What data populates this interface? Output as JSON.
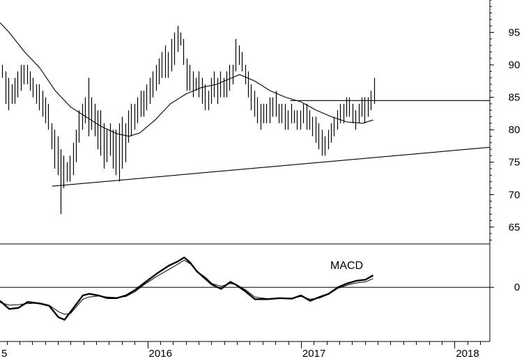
{
  "chart_data": {
    "type": "bar",
    "title": "",
    "price_axis": {
      "ticks": [
        65,
        70,
        75,
        80,
        85,
        90,
        95
      ],
      "range": [
        62.4,
        100
      ]
    },
    "macd_axis": {
      "ticks": [
        0
      ],
      "label": "MACD",
      "range": [
        -1.0,
        0.8
      ]
    },
    "time_axis": {
      "range": [
        2015.04,
        2018.23
      ],
      "year_labels": [
        {
          "value": 2015.0,
          "label": "5"
        },
        {
          "value": 2016.0,
          "label": "2016"
        },
        {
          "value": 2017.0,
          "label": "2017"
        },
        {
          "value": 2018.0,
          "label": "2018"
        }
      ]
    },
    "series": [
      {
        "kind": "weekly-ohlc-bars",
        "bars": [
          [
            2015.055,
            88,
            90
          ],
          [
            2015.075,
            84,
            89
          ],
          [
            2015.095,
            83,
            88
          ],
          [
            2015.115,
            84,
            87
          ],
          [
            2015.135,
            84,
            88
          ],
          [
            2015.155,
            85,
            89
          ],
          [
            2015.175,
            86,
            90
          ],
          [
            2015.195,
            87,
            90
          ],
          [
            2015.215,
            87,
            90
          ],
          [
            2015.235,
            86,
            89
          ],
          [
            2015.255,
            85,
            88
          ],
          [
            2015.275,
            84,
            87
          ],
          [
            2015.295,
            83,
            87
          ],
          [
            2015.315,
            82,
            86
          ],
          [
            2015.335,
            81,
            85
          ],
          [
            2015.355,
            80,
            84
          ],
          [
            2015.375,
            77,
            81
          ],
          [
            2015.395,
            74,
            80
          ],
          [
            2015.415,
            73,
            79
          ],
          [
            2015.435,
            67,
            77
          ],
          [
            2015.455,
            71,
            76
          ],
          [
            2015.475,
            72,
            75
          ],
          [
            2015.495,
            72,
            76
          ],
          [
            2015.515,
            73,
            78
          ],
          [
            2015.535,
            75,
            80
          ],
          [
            2015.555,
            78,
            83
          ],
          [
            2015.575,
            80,
            84
          ],
          [
            2015.595,
            81,
            85
          ],
          [
            2015.615,
            79,
            88
          ],
          [
            2015.635,
            80,
            85
          ],
          [
            2015.655,
            79,
            84
          ],
          [
            2015.675,
            77,
            83
          ],
          [
            2015.695,
            76,
            83
          ],
          [
            2015.715,
            74,
            81
          ],
          [
            2015.735,
            75,
            80
          ],
          [
            2015.755,
            76,
            81
          ],
          [
            2015.775,
            74,
            80
          ],
          [
            2015.795,
            73,
            80
          ],
          [
            2015.815,
            72,
            81
          ],
          [
            2015.835,
            74,
            82
          ],
          [
            2015.855,
            75,
            81
          ],
          [
            2015.875,
            78,
            83
          ],
          [
            2015.895,
            79,
            84
          ],
          [
            2015.915,
            80,
            84
          ],
          [
            2015.935,
            81,
            85
          ],
          [
            2015.955,
            82,
            86
          ],
          [
            2015.975,
            82,
            86
          ],
          [
            2015.995,
            83,
            87
          ],
          [
            2016.015,
            84,
            88
          ],
          [
            2016.035,
            85,
            89
          ],
          [
            2016.055,
            86,
            90
          ],
          [
            2016.075,
            87,
            91
          ],
          [
            2016.095,
            88,
            92
          ],
          [
            2016.115,
            88,
            93
          ],
          [
            2016.135,
            88,
            92
          ],
          [
            2016.155,
            89,
            94
          ],
          [
            2016.175,
            90,
            95
          ],
          [
            2016.195,
            92,
            96
          ],
          [
            2016.215,
            93,
            95
          ],
          [
            2016.235,
            90,
            94
          ],
          [
            2016.255,
            86,
            91
          ],
          [
            2016.275,
            86,
            90
          ],
          [
            2016.295,
            85,
            89
          ],
          [
            2016.315,
            86,
            88
          ],
          [
            2016.335,
            85,
            89
          ],
          [
            2016.355,
            84,
            88
          ],
          [
            2016.375,
            83,
            87
          ],
          [
            2016.395,
            83,
            86
          ],
          [
            2016.415,
            84,
            88
          ],
          [
            2016.435,
            85,
            89
          ],
          [
            2016.455,
            84,
            88
          ],
          [
            2016.475,
            85,
            89
          ],
          [
            2016.495,
            85,
            88
          ],
          [
            2016.515,
            85,
            89
          ],
          [
            2016.535,
            86,
            90
          ],
          [
            2016.555,
            87,
            90
          ],
          [
            2016.575,
            89,
            94
          ],
          [
            2016.595,
            90,
            93
          ],
          [
            2016.615,
            89,
            92
          ],
          [
            2016.635,
            87,
            90
          ],
          [
            2016.655,
            85,
            89
          ],
          [
            2016.675,
            83,
            87
          ],
          [
            2016.695,
            82,
            86
          ],
          [
            2016.715,
            81,
            85
          ],
          [
            2016.735,
            80,
            84
          ],
          [
            2016.755,
            81,
            84
          ],
          [
            2016.775,
            81,
            84
          ],
          [
            2016.795,
            81,
            85
          ],
          [
            2016.815,
            82,
            85
          ],
          [
            2016.835,
            82,
            86
          ],
          [
            2016.855,
            81,
            84
          ],
          [
            2016.875,
            81,
            84
          ],
          [
            2016.895,
            80,
            84
          ],
          [
            2016.915,
            80,
            83
          ],
          [
            2016.935,
            81,
            84
          ],
          [
            2016.955,
            81,
            83
          ],
          [
            2016.975,
            80,
            83
          ],
          [
            2016.995,
            80,
            83
          ],
          [
            2017.015,
            81,
            84
          ],
          [
            2017.035,
            80,
            84
          ],
          [
            2017.055,
            80,
            83
          ],
          [
            2017.075,
            79,
            82
          ],
          [
            2017.095,
            78,
            82
          ],
          [
            2017.115,
            77,
            81
          ],
          [
            2017.135,
            76,
            80
          ],
          [
            2017.155,
            76,
            79
          ],
          [
            2017.175,
            77,
            80
          ],
          [
            2017.195,
            78,
            81
          ],
          [
            2017.215,
            79,
            82
          ],
          [
            2017.235,
            80,
            83
          ],
          [
            2017.255,
            81,
            84
          ],
          [
            2017.275,
            81,
            84
          ],
          [
            2017.295,
            82,
            85
          ],
          [
            2017.315,
            82,
            85
          ],
          [
            2017.335,
            81,
            84
          ],
          [
            2017.355,
            80,
            83
          ],
          [
            2017.375,
            81,
            84
          ],
          [
            2017.395,
            82,
            85
          ],
          [
            2017.415,
            81,
            85
          ],
          [
            2017.435,
            82,
            85
          ],
          [
            2017.455,
            83,
            86
          ],
          [
            2017.475,
            84,
            88
          ]
        ]
      },
      {
        "kind": "moving-average",
        "points": [
          [
            2015.04,
            96.5
          ],
          [
            2015.1,
            95.0
          ],
          [
            2015.2,
            92.0
          ],
          [
            2015.3,
            89.5
          ],
          [
            2015.4,
            86.0
          ],
          [
            2015.5,
            83.5
          ],
          [
            2015.6,
            82.0
          ],
          [
            2015.7,
            80.5
          ],
          [
            2015.8,
            79.4
          ],
          [
            2015.88,
            79.0
          ],
          [
            2015.95,
            79.5
          ],
          [
            2016.05,
            81.5
          ],
          [
            2016.15,
            84.0
          ],
          [
            2016.25,
            85.5
          ],
          [
            2016.35,
            86.5
          ],
          [
            2016.45,
            87.0
          ],
          [
            2016.55,
            88.0
          ],
          [
            2016.6,
            88.5
          ],
          [
            2016.7,
            87.5
          ],
          [
            2016.8,
            86.0
          ],
          [
            2016.9,
            85.0
          ],
          [
            2017.0,
            84.3
          ],
          [
            2017.1,
            83.0
          ],
          [
            2017.2,
            82.0
          ],
          [
            2017.3,
            81.2
          ],
          [
            2017.4,
            81.0
          ],
          [
            2017.47,
            81.5
          ]
        ]
      },
      {
        "kind": "macd-line",
        "points": [
          [
            2015.04,
            -0.25
          ],
          [
            2015.1,
            -0.4
          ],
          [
            2015.16,
            -0.38
          ],
          [
            2015.22,
            -0.27
          ],
          [
            2015.3,
            -0.3
          ],
          [
            2015.36,
            -0.34
          ],
          [
            2015.42,
            -0.55
          ],
          [
            2015.46,
            -0.6
          ],
          [
            2015.5,
            -0.45
          ],
          [
            2015.54,
            -0.3
          ],
          [
            2015.58,
            -0.15
          ],
          [
            2015.62,
            -0.12
          ],
          [
            2015.68,
            -0.15
          ],
          [
            2015.74,
            -0.2
          ],
          [
            2015.8,
            -0.2
          ],
          [
            2015.86,
            -0.15
          ],
          [
            2015.92,
            -0.05
          ],
          [
            2015.98,
            0.08
          ],
          [
            2016.06,
            0.25
          ],
          [
            2016.14,
            0.4
          ],
          [
            2016.2,
            0.48
          ],
          [
            2016.24,
            0.55
          ],
          [
            2016.28,
            0.45
          ],
          [
            2016.32,
            0.3
          ],
          [
            2016.38,
            0.15
          ],
          [
            2016.42,
            0.05
          ],
          [
            2016.48,
            -0.03
          ],
          [
            2016.54,
            0.1
          ],
          [
            2016.58,
            0.04
          ],
          [
            2016.64,
            -0.08
          ],
          [
            2016.7,
            -0.22
          ],
          [
            2016.78,
            -0.22
          ],
          [
            2016.86,
            -0.2
          ],
          [
            2016.94,
            -0.21
          ],
          [
            2017.0,
            -0.15
          ],
          [
            2017.06,
            -0.25
          ],
          [
            2017.12,
            -0.18
          ],
          [
            2017.18,
            -0.12
          ],
          [
            2017.24,
            0.0
          ],
          [
            2017.3,
            0.07
          ],
          [
            2017.36,
            0.12
          ],
          [
            2017.42,
            0.14
          ],
          [
            2017.47,
            0.22
          ]
        ]
      },
      {
        "kind": "signal-line",
        "points": [
          [
            2015.04,
            -0.28
          ],
          [
            2015.1,
            -0.33
          ],
          [
            2015.16,
            -0.32
          ],
          [
            2015.22,
            -0.3
          ],
          [
            2015.3,
            -0.29
          ],
          [
            2015.36,
            -0.33
          ],
          [
            2015.42,
            -0.45
          ],
          [
            2015.46,
            -0.5
          ],
          [
            2015.5,
            -0.48
          ],
          [
            2015.54,
            -0.35
          ],
          [
            2015.58,
            -0.22
          ],
          [
            2015.62,
            -0.18
          ],
          [
            2015.68,
            -0.16
          ],
          [
            2015.74,
            -0.18
          ],
          [
            2015.8,
            -0.19
          ],
          [
            2015.86,
            -0.17
          ],
          [
            2015.92,
            -0.08
          ],
          [
            2015.98,
            0.05
          ],
          [
            2016.06,
            0.2
          ],
          [
            2016.14,
            0.33
          ],
          [
            2016.2,
            0.43
          ],
          [
            2016.24,
            0.5
          ],
          [
            2016.28,
            0.43
          ],
          [
            2016.32,
            0.3
          ],
          [
            2016.38,
            0.18
          ],
          [
            2016.42,
            0.07
          ],
          [
            2016.48,
            0.02
          ],
          [
            2016.54,
            0.07
          ],
          [
            2016.58,
            0.05
          ],
          [
            2016.64,
            -0.05
          ],
          [
            2016.7,
            -0.18
          ],
          [
            2016.78,
            -0.21
          ],
          [
            2016.86,
            -0.2
          ],
          [
            2016.94,
            -0.2
          ],
          [
            2017.0,
            -0.17
          ],
          [
            2017.06,
            -0.22
          ],
          [
            2017.12,
            -0.2
          ],
          [
            2017.18,
            -0.13
          ],
          [
            2017.24,
            -0.02
          ],
          [
            2017.3,
            0.04
          ],
          [
            2017.36,
            0.08
          ],
          [
            2017.42,
            0.1
          ],
          [
            2017.47,
            0.16
          ]
        ]
      }
    ],
    "annotations": [
      {
        "kind": "trendline",
        "from": [
          2015.38,
          71.3
        ],
        "to": [
          2018.23,
          77.3
        ]
      },
      {
        "kind": "resistance-line",
        "from": [
          2016.93,
          84.5
        ],
        "to": [
          2018.23,
          84.5
        ]
      }
    ]
  }
}
